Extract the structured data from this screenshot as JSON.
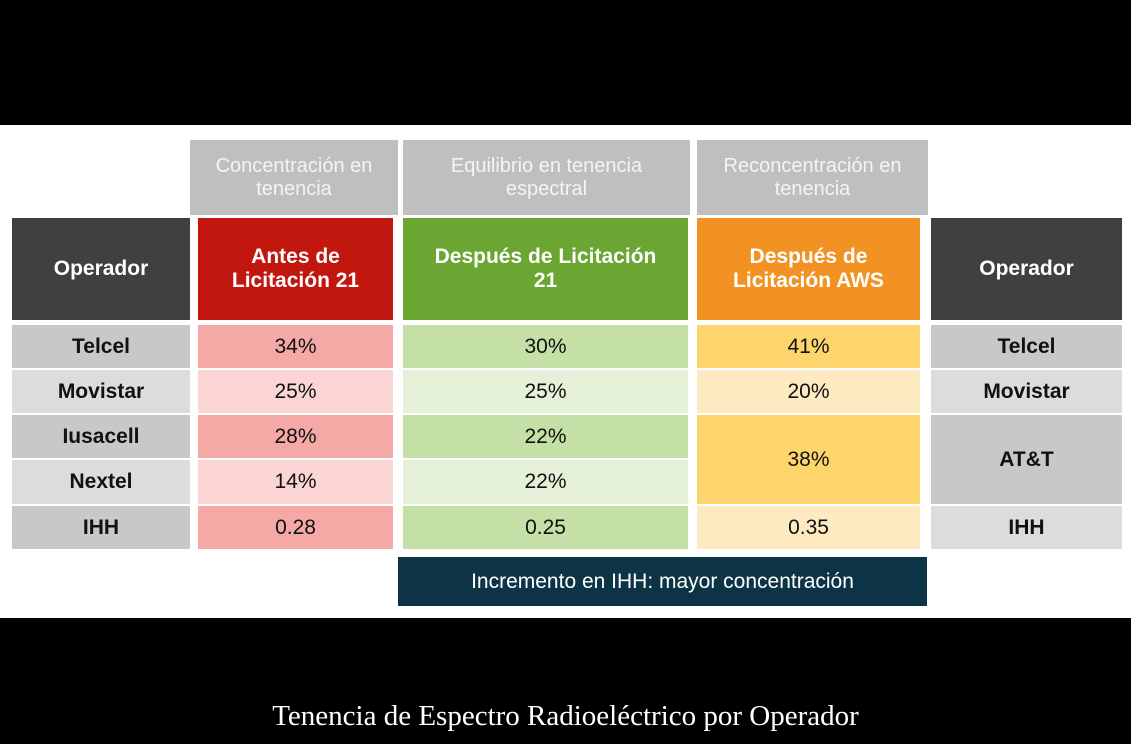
{
  "table": {
    "groups": [
      "Concentración en tenencia",
      "Equilibrio en tenencia espectral",
      "Reconcentración en tenencia"
    ],
    "left_header": "Operador",
    "columns": [
      "Antes de Licitación 21",
      "Después de Licitación 21",
      "Después de Licitación AWS"
    ],
    "right_header": "Operador",
    "left_rows": [
      "Telcel",
      "Movistar",
      "Iusacell",
      "Nextel",
      "IHH"
    ],
    "col1": [
      "34%",
      "25%",
      "28%",
      "14%",
      "0.28"
    ],
    "col2": [
      "30%",
      "25%",
      "22%",
      "22%",
      "0.25"
    ],
    "col3": [
      "41%",
      "20%",
      "38%",
      "0.35"
    ],
    "right_rows": [
      "Telcel",
      "Movistar",
      "AT&T",
      "IHH"
    ]
  },
  "note": "Incremento en IHH: mayor concentración",
  "caption": "Tenencia de Espectro Radioeléctrico por Operador"
}
